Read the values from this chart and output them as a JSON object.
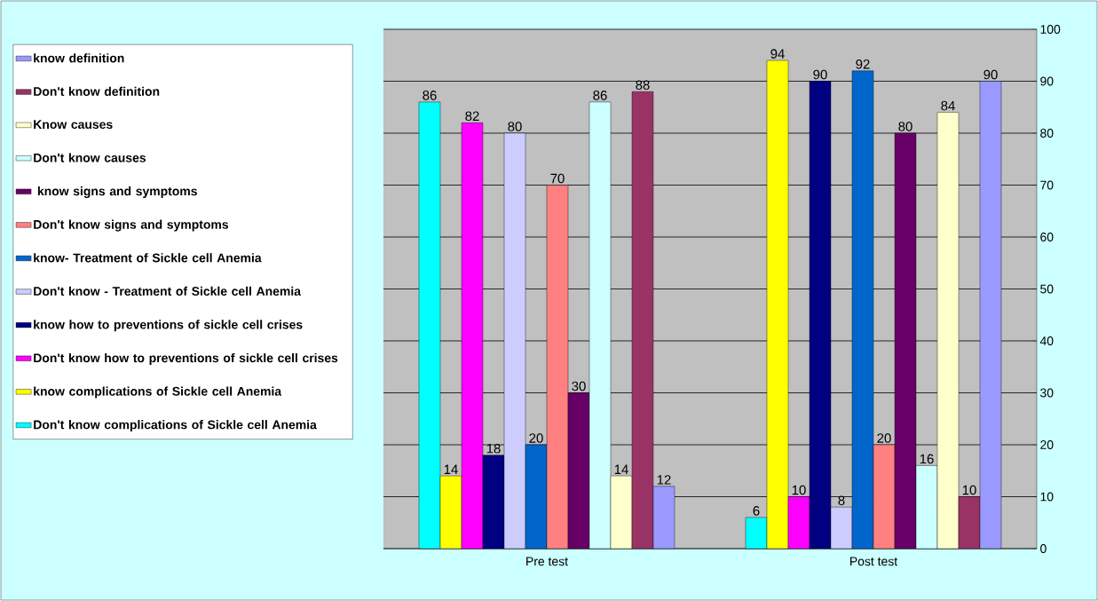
{
  "chart_data": {
    "type": "bar",
    "categories": [
      "Pre test",
      "Post test"
    ],
    "series": [
      {
        "name": "Don't know complications of Sickle cell Anemia",
        "color": "#00ffff",
        "values": [
          86,
          6
        ]
      },
      {
        "name": "know complications of Sickle cell Anemia",
        "color": "#ffff00",
        "values": [
          14,
          94
        ]
      },
      {
        "name": "Don't know how to preventions of sickle cell crises",
        "color": "#ff00ff",
        "values": [
          82,
          10
        ]
      },
      {
        "name": "know  how to preventions of sickle cell crises",
        "color": "#000080",
        "values": [
          18,
          90
        ]
      },
      {
        "name": "Don't know - Treatment of Sickle cell Anemia",
        "color": "#ccccff",
        "values": [
          80,
          8
        ]
      },
      {
        "name": "know- Treatment of Sickle cell Anemia",
        "color": "#0066cc",
        "values": [
          20,
          92
        ]
      },
      {
        "name": "Don't know signs and symptoms",
        "color": "#ff8080",
        "values": [
          70,
          20
        ]
      },
      {
        "name": " know signs and symptoms",
        "color": "#660066",
        "values": [
          30,
          80
        ]
      },
      {
        "name": "Don't know causes",
        "color": "#ccffff",
        "values": [
          86,
          16
        ]
      },
      {
        "name": "Know causes",
        "color": "#ffffcc",
        "values": [
          14,
          84
        ]
      },
      {
        "name": "Don't know definition",
        "color": "#993366",
        "values": [
          88,
          10
        ]
      },
      {
        "name": "know definition",
        "color": "#9999ff",
        "values": [
          12,
          90
        ]
      }
    ],
    "ylim": [
      0,
      100
    ],
    "yticks": [
      0,
      10,
      20,
      30,
      40,
      50,
      60,
      70,
      80,
      90,
      100
    ],
    "grid": "y",
    "legend": "left",
    "data_labels": true
  }
}
